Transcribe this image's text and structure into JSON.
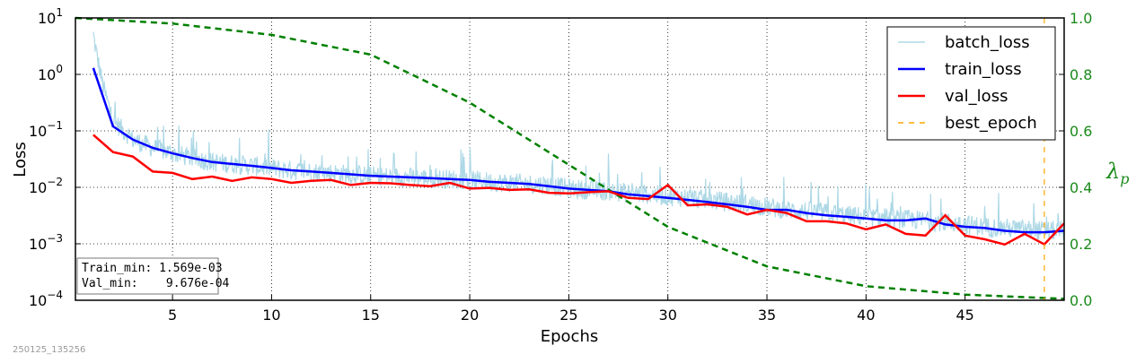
{
  "chart_data": {
    "type": "line",
    "xlabel": "Epochs",
    "ylabel": "Loss",
    "ylabel_right": "λ",
    "ylabel_right_sub": "p",
    "xlim": [
      0.1,
      50
    ],
    "ylim": [
      0.0001,
      10
    ],
    "ylim_right": [
      0,
      1
    ],
    "yscale": "log",
    "grid": true,
    "legend_position": "top-right",
    "x_ticks": [
      "5",
      "10",
      "15",
      "20",
      "25",
      "30",
      "35",
      "40",
      "45"
    ],
    "y_ticks": [
      {
        "base": "10",
        "exp": "1"
      },
      {
        "base": "10",
        "exp": "0"
      },
      {
        "base": "10",
        "exp": "−1"
      },
      {
        "base": "10",
        "exp": "−2"
      },
      {
        "base": "10",
        "exp": "−3"
      },
      {
        "base": "10",
        "exp": "−4"
      }
    ],
    "y_ticks_right": [
      "1.0",
      "0.8",
      "0.6",
      "0.4",
      "0.2",
      "0.0"
    ],
    "series": [
      {
        "name": "batch_loss",
        "color": "#add8e6",
        "style": "solid",
        "axis": "left",
        "anchors_x": [
          1,
          1.2,
          1.5,
          2,
          3,
          4,
          5,
          6,
          7,
          8,
          9,
          10,
          11,
          12,
          13,
          14,
          15,
          16,
          17,
          18,
          19,
          20,
          21,
          22,
          23,
          24,
          25,
          26,
          27,
          28,
          29,
          30,
          31,
          32,
          33,
          34,
          35,
          36,
          37,
          38,
          39,
          40,
          41,
          42,
          43,
          44,
          45,
          46,
          47,
          48,
          49,
          50
        ],
        "anchors_y": [
          5,
          2,
          0.6,
          0.15,
          0.07,
          0.05,
          0.04,
          0.033,
          0.028,
          0.026,
          0.024,
          0.022,
          0.02,
          0.019,
          0.018,
          0.017,
          0.016,
          0.0155,
          0.015,
          0.0145,
          0.014,
          0.0135,
          0.0125,
          0.012,
          0.0115,
          0.011,
          0.0095,
          0.009,
          0.0085,
          0.008,
          0.0075,
          0.007,
          0.0065,
          0.006,
          0.0055,
          0.005,
          0.0045,
          0.004,
          0.0038,
          0.0035,
          0.0032,
          0.003,
          0.0028,
          0.0027,
          0.0026,
          0.0024,
          0.0022,
          0.002,
          0.0019,
          0.0018,
          0.0017,
          0.0017
        ]
      },
      {
        "name": "train_loss",
        "color": "#0000ff",
        "style": "solid",
        "axis": "left",
        "x": [
          1,
          2,
          3,
          4,
          5,
          6,
          7,
          8,
          9,
          10,
          11,
          12,
          13,
          14,
          15,
          16,
          17,
          18,
          19,
          20,
          21,
          22,
          23,
          24,
          25,
          26,
          27,
          28,
          29,
          30,
          31,
          32,
          33,
          34,
          35,
          36,
          37,
          38,
          39,
          40,
          41,
          42,
          43,
          44,
          45,
          46,
          47,
          48,
          49,
          50
        ],
        "y": [
          1.3,
          0.12,
          0.07,
          0.05,
          0.04,
          0.033,
          0.028,
          0.026,
          0.024,
          0.022,
          0.02,
          0.019,
          0.018,
          0.017,
          0.016,
          0.0155,
          0.015,
          0.0145,
          0.014,
          0.0135,
          0.0125,
          0.012,
          0.0115,
          0.0105,
          0.0095,
          0.009,
          0.0085,
          0.0075,
          0.007,
          0.0065,
          0.006,
          0.0055,
          0.005,
          0.0045,
          0.004,
          0.004,
          0.0035,
          0.0032,
          0.003,
          0.0028,
          0.0026,
          0.0026,
          0.0028,
          0.0022,
          0.002,
          0.0019,
          0.0017,
          0.0016,
          0.0016,
          0.0017
        ]
      },
      {
        "name": "val_loss",
        "color": "#ff0000",
        "style": "solid",
        "axis": "left",
        "x": [
          1,
          2,
          3,
          4,
          5,
          6,
          7,
          8,
          9,
          10,
          11,
          12,
          13,
          14,
          15,
          16,
          17,
          18,
          19,
          20,
          21,
          22,
          23,
          24,
          25,
          26,
          27,
          28,
          29,
          30,
          31,
          32,
          33,
          34,
          35,
          36,
          37,
          38,
          39,
          40,
          41,
          42,
          43,
          44,
          45,
          46,
          47,
          48,
          49,
          50
        ],
        "y": [
          0.085,
          0.042,
          0.035,
          0.019,
          0.018,
          0.014,
          0.0155,
          0.013,
          0.015,
          0.014,
          0.012,
          0.013,
          0.0135,
          0.011,
          0.012,
          0.0118,
          0.011,
          0.0105,
          0.012,
          0.0095,
          0.0098,
          0.009,
          0.0092,
          0.008,
          0.0078,
          0.0082,
          0.0085,
          0.0065,
          0.0062,
          0.011,
          0.0048,
          0.005,
          0.0045,
          0.0033,
          0.004,
          0.0035,
          0.0025,
          0.0025,
          0.0023,
          0.0018,
          0.0022,
          0.0015,
          0.0014,
          0.0032,
          0.0014,
          0.0012,
          0.00097,
          0.0015,
          0.00098,
          0.0023
        ]
      },
      {
        "name": "best_epoch",
        "color": "#ffa500",
        "style": "dashed",
        "axis": "left",
        "x_value": 49
      },
      {
        "name": "lambda_p",
        "color": "#008000",
        "style": "dashed",
        "axis": "right",
        "x": [
          0.1,
          5,
          10,
          15,
          20,
          25,
          30,
          35,
          40,
          45,
          50
        ],
        "y": [
          1.0,
          0.98,
          0.94,
          0.87,
          0.7,
          0.48,
          0.26,
          0.12,
          0.05,
          0.02,
          0.005
        ]
      }
    ],
    "annotations": {
      "train_min_line": "Train_min: 1.569e-03",
      "val_min_line": "Val_min:    9.676e-04"
    }
  },
  "footer": {
    "timestamp": "250125_135256"
  }
}
